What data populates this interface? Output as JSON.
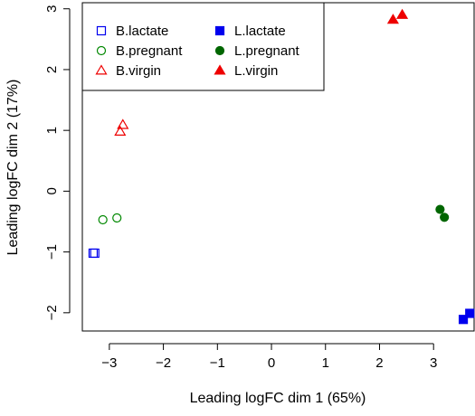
{
  "chart_data": {
    "type": "scatter",
    "title": "",
    "xlabel": "Leading logFC dim 1 (65%)",
    "ylabel": "Leading logFC dim 2 (17%)",
    "xlim": [
      -3.5,
      3.75
    ],
    "ylim": [
      -2.3,
      3.1
    ],
    "xticks": [
      -3,
      -2,
      -1,
      0,
      1,
      2,
      3
    ],
    "yticks": [
      -2,
      -1,
      0,
      1,
      2,
      3
    ],
    "grid": false,
    "legend_position": "top-left",
    "series": [
      {
        "name": "B.lactate",
        "color": "#0000EE",
        "marker": "open-square",
        "points": [
          {
            "x": -3.3,
            "y": -1.02
          },
          {
            "x": -3.27,
            "y": -1.02
          }
        ]
      },
      {
        "name": "B.pregnant",
        "color": "#008800",
        "marker": "open-circle",
        "points": [
          {
            "x": -3.12,
            "y": -0.47
          },
          {
            "x": -2.86,
            "y": -0.44
          }
        ]
      },
      {
        "name": "B.virgin",
        "color": "#EE0000",
        "marker": "open-triangle",
        "points": [
          {
            "x": -2.8,
            "y": 0.98
          },
          {
            "x": -2.75,
            "y": 1.09
          }
        ]
      },
      {
        "name": "L.lactate",
        "color": "#0000EE",
        "marker": "filled-square",
        "points": [
          {
            "x": 3.55,
            "y": -2.11
          },
          {
            "x": 3.67,
            "y": -2.01
          }
        ]
      },
      {
        "name": "L.pregnant",
        "color": "#006600",
        "marker": "filled-circle",
        "points": [
          {
            "x": 3.12,
            "y": -0.3
          },
          {
            "x": 3.2,
            "y": -0.43
          }
        ]
      },
      {
        "name": "L.virgin",
        "color": "#EE0000",
        "marker": "filled-triangle",
        "points": [
          {
            "x": 2.25,
            "y": 2.82
          },
          {
            "x": 2.42,
            "y": 2.9
          }
        ]
      }
    ]
  }
}
